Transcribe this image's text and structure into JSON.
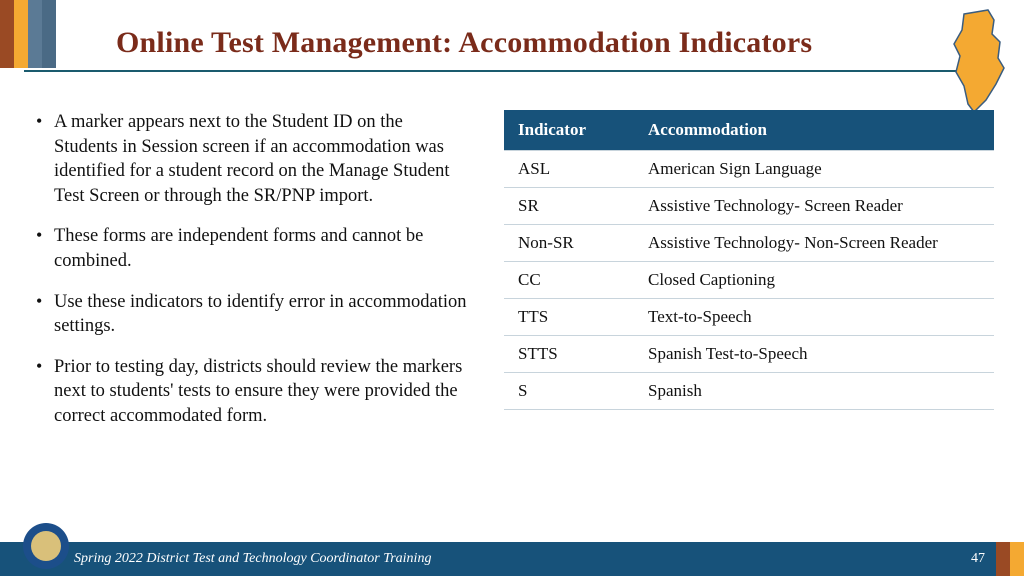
{
  "colors": {
    "title": "#7a2b1a",
    "underline": "#1a5b6e",
    "header_bg": "#17527a",
    "header_text": "#ffffff",
    "cell_border": "#c8d4dc",
    "footer_bg": "#17527a",
    "nj_fill": "#f4a932",
    "nj_stroke": "#3a5d80",
    "stripe1": "#9a4a24",
    "stripe2": "#f4a932",
    "stripe3": "#5b7a95",
    "stripe4": "#4a6a85",
    "seal_outer": "#1c4e8a",
    "seal_inner": "#d9c07a"
  },
  "stripes": {
    "widths": [
      14,
      14,
      14,
      14
    ]
  },
  "title": "Online Test Management: Accommodation Indicators",
  "bullets": [
    "A marker appears next to the Student ID on the Students in Session screen if an accommodation was identified for a student record on the Manage Student Test Screen or through the SR/PNP import.",
    "These forms are independent forms and cannot be combined.",
    "Use these indicators to identify error in accommodation settings.",
    "Prior to testing day, districts should review the markers next to students' tests to ensure they were provided the correct accommodated form."
  ],
  "table": {
    "columns": [
      "Indicator",
      "Accommodation"
    ],
    "rows": [
      [
        "ASL",
        "American Sign Language"
      ],
      [
        "SR",
        "Assistive Technology- Screen Reader"
      ],
      [
        "Non-SR",
        "Assistive Technology- Non-Screen Reader"
      ],
      [
        "CC",
        "Closed Captioning"
      ],
      [
        "TTS",
        "Text-to-Speech"
      ],
      [
        "STTS",
        "Spanish Test-to-Speech"
      ],
      [
        "S",
        "Spanish"
      ]
    ]
  },
  "footer": {
    "text": "Spring 2022 District Test and Technology Coordinator Training",
    "page": "47",
    "stripe_colors": [
      "#9a4a24",
      "#f4a932"
    ]
  }
}
